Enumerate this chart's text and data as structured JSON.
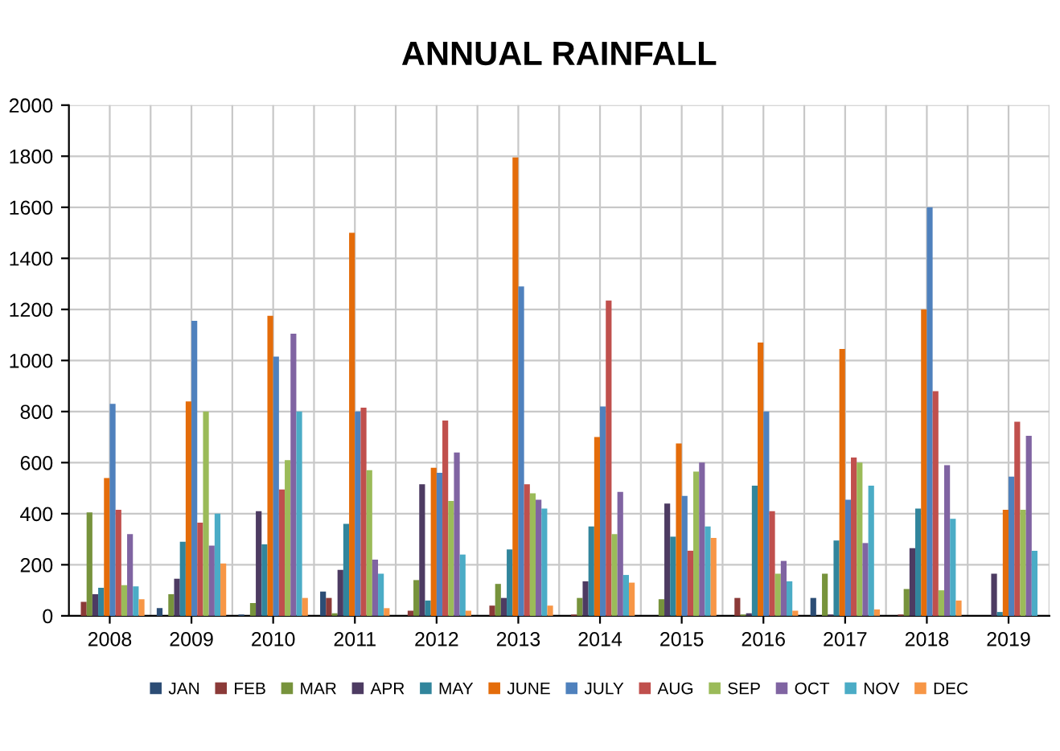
{
  "chart_data": {
    "type": "bar",
    "title": "ANNUAL RAINFALL",
    "categories": [
      "2008",
      "2009",
      "2010",
      "2011",
      "2012",
      "2013",
      "2014",
      "2015",
      "2016",
      "2017",
      "2018",
      "2019"
    ],
    "series": [
      {
        "name": "JAN",
        "color": "#2c4d75",
        "values": [
          0,
          30,
          5,
          95,
          0,
          0,
          0,
          0,
          0,
          70,
          0,
          0
        ]
      },
      {
        "name": "FEB",
        "color": "#8b3a38",
        "values": [
          55,
          0,
          0,
          70,
          20,
          40,
          5,
          0,
          70,
          0,
          5,
          0
        ]
      },
      {
        "name": "MAR",
        "color": "#77933c",
        "values": [
          405,
          85,
          50,
          10,
          140,
          125,
          70,
          65,
          5,
          165,
          105,
          0
        ]
      },
      {
        "name": "APR",
        "color": "#4d3b62",
        "values": [
          85,
          145,
          410,
          180,
          515,
          70,
          135,
          440,
          10,
          5,
          265,
          165
        ]
      },
      {
        "name": "MAY",
        "color": "#31859c",
        "values": [
          110,
          290,
          280,
          360,
          60,
          260,
          350,
          310,
          510,
          295,
          420,
          15
        ]
      },
      {
        "name": "JUNE",
        "color": "#e46c0a",
        "values": [
          540,
          840,
          1175,
          1500,
          580,
          1795,
          700,
          675,
          1070,
          1045,
          1200,
          415
        ]
      },
      {
        "name": "JULY",
        "color": "#4f81bd",
        "values": [
          830,
          1155,
          1015,
          800,
          560,
          1290,
          820,
          470,
          800,
          455,
          1600,
          545
        ]
      },
      {
        "name": "AUG",
        "color": "#c0504d",
        "values": [
          415,
          365,
          495,
          815,
          765,
          515,
          1235,
          255,
          410,
          620,
          880,
          760
        ]
      },
      {
        "name": "SEP",
        "color": "#9bbb59",
        "values": [
          120,
          800,
          610,
          570,
          450,
          480,
          320,
          565,
          165,
          600,
          100,
          415
        ]
      },
      {
        "name": "OCT",
        "color": "#8064a2",
        "values": [
          320,
          275,
          1105,
          220,
          640,
          455,
          485,
          600,
          215,
          285,
          590,
          705
        ]
      },
      {
        "name": "NOV",
        "color": "#4bacc6",
        "values": [
          115,
          400,
          800,
          165,
          240,
          420,
          160,
          350,
          135,
          510,
          380,
          255
        ]
      },
      {
        "name": "DEC",
        "color": "#f79646",
        "values": [
          65,
          205,
          70,
          30,
          20,
          40,
          130,
          305,
          20,
          25,
          60,
          0
        ]
      }
    ],
    "ylim": [
      0,
      2000
    ],
    "yticks": [
      0,
      200,
      400,
      600,
      800,
      1000,
      1200,
      1400,
      1600,
      1800,
      2000
    ],
    "grid": true,
    "legend": "bottom"
  }
}
